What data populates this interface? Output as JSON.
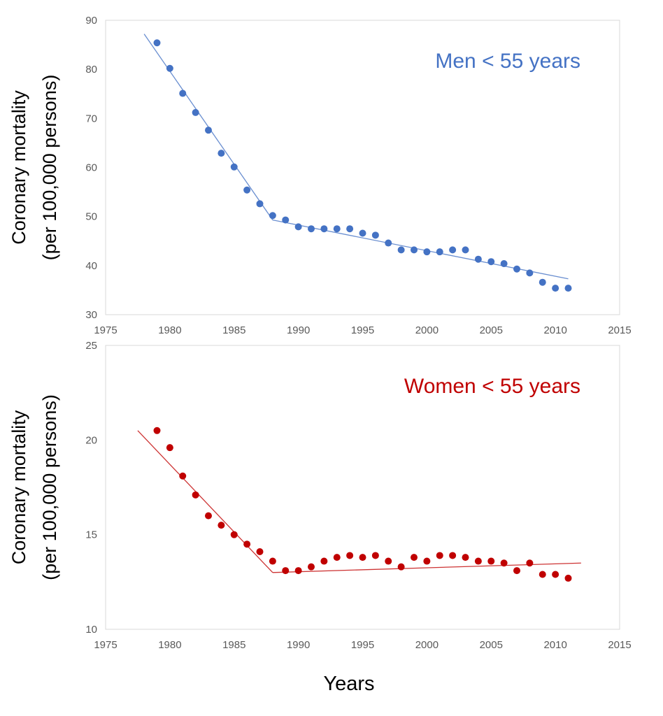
{
  "figure": {
    "xlabel": "Years"
  },
  "chart_data": [
    {
      "type": "scatter",
      "title": "",
      "annotation": "Men < 55 years",
      "ylabel_lines": [
        "Coronary mortality",
        "(per 100,000 persons)"
      ],
      "xlabel": "",
      "xlim": [
        1975,
        2015
      ],
      "ylim": [
        30,
        90
      ],
      "xticks": [
        "1975",
        "1980",
        "1985",
        "1990",
        "1995",
        "2000",
        "2005",
        "2010",
        "2015"
      ],
      "yticks": [
        "30",
        "40",
        "50",
        "60",
        "70",
        "80",
        "90"
      ],
      "grid": false,
      "color": "#4472C4",
      "series": [
        {
          "x": [
            1979,
            1980,
            1981,
            1982,
            1983,
            1984,
            1985,
            1986,
            1987,
            1988,
            1989,
            1990,
            1991,
            1992,
            1993,
            1994,
            1995,
            1996,
            1997,
            1998,
            1999,
            2000,
            2001,
            2002,
            2003,
            2004,
            2005,
            2006,
            2007,
            2008,
            2009,
            2010,
            2011
          ],
          "y": [
            85.4,
            80.2,
            75.1,
            71.2,
            67.6,
            62.9,
            60.1,
            55.4,
            52.6,
            50.2,
            49.3,
            47.9,
            47.5,
            47.5,
            47.5,
            47.5,
            46.6,
            46.2,
            44.6,
            43.2,
            43.2,
            42.8,
            42.8,
            43.2,
            43.2,
            41.3,
            40.8,
            40.4,
            39.3,
            38.5,
            36.6,
            35.4,
            35.4
          ]
        }
      ],
      "trend_lines": [
        {
          "x": [
            1978,
            1988
          ],
          "y": [
            87.2,
            49.3
          ]
        },
        {
          "x": [
            1988,
            2011
          ],
          "y": [
            49.3,
            37.3
          ]
        }
      ]
    },
    {
      "type": "scatter",
      "title": "",
      "annotation": "Women < 55 years",
      "ylabel_lines": [
        "Coronary mortality",
        "(per 100,000 persons)"
      ],
      "xlabel": "",
      "xlim": [
        1975,
        2015
      ],
      "ylim": [
        10,
        25
      ],
      "xticks": [
        "1975",
        "1980",
        "1985",
        "1990",
        "1995",
        "2000",
        "2005",
        "2010",
        "2015"
      ],
      "yticks": [
        "10",
        "15",
        "20",
        "25"
      ],
      "grid": false,
      "color": "#C00000",
      "series": [
        {
          "x": [
            1979,
            1980,
            1981,
            1982,
            1983,
            1984,
            1985,
            1986,
            1987,
            1988,
            1989,
            1990,
            1991,
            1992,
            1993,
            1994,
            1995,
            1996,
            1997,
            1998,
            1999,
            2000,
            2001,
            2002,
            2003,
            2004,
            2005,
            2006,
            2007,
            2008,
            2009,
            2010,
            2011
          ],
          "y": [
            20.5,
            19.6,
            18.1,
            17.1,
            16.0,
            15.5,
            15.0,
            14.5,
            14.1,
            13.6,
            13.1,
            13.1,
            13.3,
            13.6,
            13.8,
            13.9,
            13.8,
            13.9,
            13.6,
            13.3,
            13.8,
            13.6,
            13.9,
            13.9,
            13.8,
            13.6,
            13.6,
            13.5,
            13.1,
            13.5,
            12.9,
            12.9,
            12.7
          ]
        }
      ],
      "trend_lines": [
        {
          "x": [
            1977.5,
            1988
          ],
          "y": [
            20.5,
            13.0
          ]
        },
        {
          "x": [
            1988,
            2012
          ],
          "y": [
            13.0,
            13.5
          ]
        }
      ]
    }
  ]
}
